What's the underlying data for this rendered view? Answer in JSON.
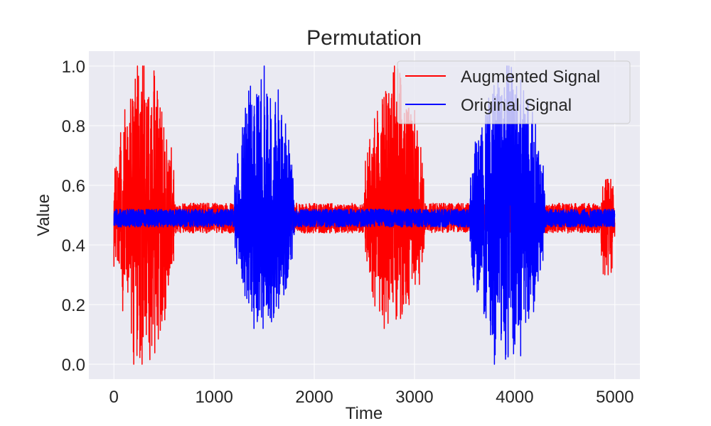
{
  "chart_data": {
    "type": "line",
    "title": "Permutation",
    "xlabel": "Time",
    "ylabel": "Value",
    "xlim": [
      -250,
      5250
    ],
    "ylim": [
      -0.05,
      1.05
    ],
    "xticks": [
      0,
      1000,
      2000,
      3000,
      4000,
      5000
    ],
    "yticks": [
      0.0,
      0.2,
      0.4,
      0.6,
      0.8,
      1.0
    ],
    "xtick_labels": [
      "0",
      "1000",
      "2000",
      "3000",
      "4000",
      "5000"
    ],
    "ytick_labels": [
      "0.0",
      "0.2",
      "0.4",
      "0.6",
      "0.8",
      "1.0"
    ],
    "grid": true,
    "legend_position": "top-right",
    "n_points": 5000,
    "baseline": 0.49,
    "series": [
      {
        "name": "Augmented Signal",
        "color": "#ff0000",
        "bursts": [
          {
            "start": 0,
            "end": 600,
            "peak_max": 1.0,
            "peak_min": 0.0
          },
          {
            "start": 2500,
            "end": 3100,
            "peak_max": 1.0,
            "peak_min": 0.12
          },
          {
            "start": 4850,
            "end": 5000,
            "peak_max": 0.62,
            "peak_min": 0.3
          }
        ],
        "quiet_amplitude": 0.05
      },
      {
        "name": "Original Signal",
        "color": "#0000ff",
        "bursts": [
          {
            "start": 1200,
            "end": 1800,
            "peak_max": 1.0,
            "peak_min": 0.12
          },
          {
            "start": 3550,
            "end": 4300,
            "peak_max": 1.0,
            "peak_min": 0.0
          }
        ],
        "quiet_amplitude": 0.03
      }
    ]
  },
  "colors": {
    "plot_background": "#eaeaf2",
    "grid": "#ffffff",
    "text": "#262626"
  }
}
